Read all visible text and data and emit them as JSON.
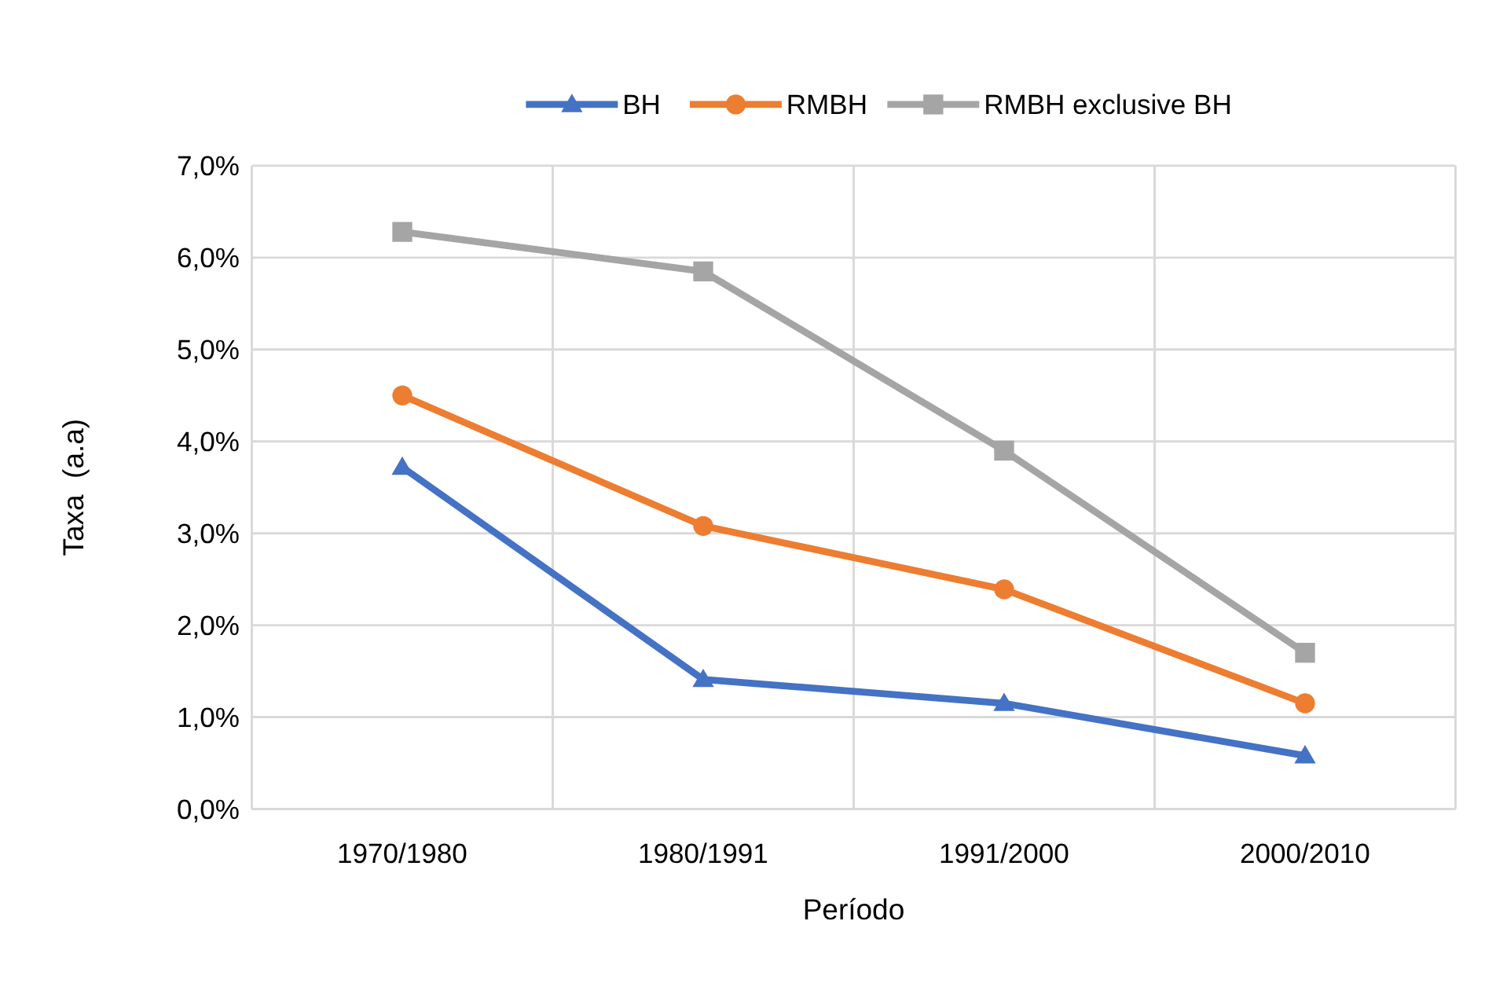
{
  "chart_data": {
    "type": "line",
    "xlabel": "Período",
    "ylabel": "Taxa  (a.a)",
    "categories": [
      "1970/1980",
      "1980/1991",
      "1991/2000",
      "2000/2010"
    ],
    "series": [
      {
        "name": "BH",
        "color": "#4472c4",
        "marker": "triangle",
        "values": [
          3.72,
          1.41,
          1.15,
          0.58
        ]
      },
      {
        "name": "RMBH",
        "color": "#ed7d31",
        "marker": "circle",
        "values": [
          4.5,
          3.08,
          2.39,
          1.15
        ]
      },
      {
        "name": "RMBH exclusive BH",
        "color": "#a5a5a5",
        "marker": "square",
        "values": [
          6.28,
          5.85,
          3.9,
          1.7
        ]
      }
    ],
    "ylim": [
      0,
      7
    ],
    "yticks": [
      {
        "value": 0,
        "label": "0,0%"
      },
      {
        "value": 1,
        "label": "1,0%"
      },
      {
        "value": 2,
        "label": "2,0%"
      },
      {
        "value": 3,
        "label": "3,0%"
      },
      {
        "value": 4,
        "label": "4,0%"
      },
      {
        "value": 5,
        "label": "5,0%"
      },
      {
        "value": 6,
        "label": "6,0%"
      },
      {
        "value": 7,
        "label": "7,0%"
      }
    ],
    "grid": true,
    "legend": "top",
    "line_style": "solid"
  }
}
